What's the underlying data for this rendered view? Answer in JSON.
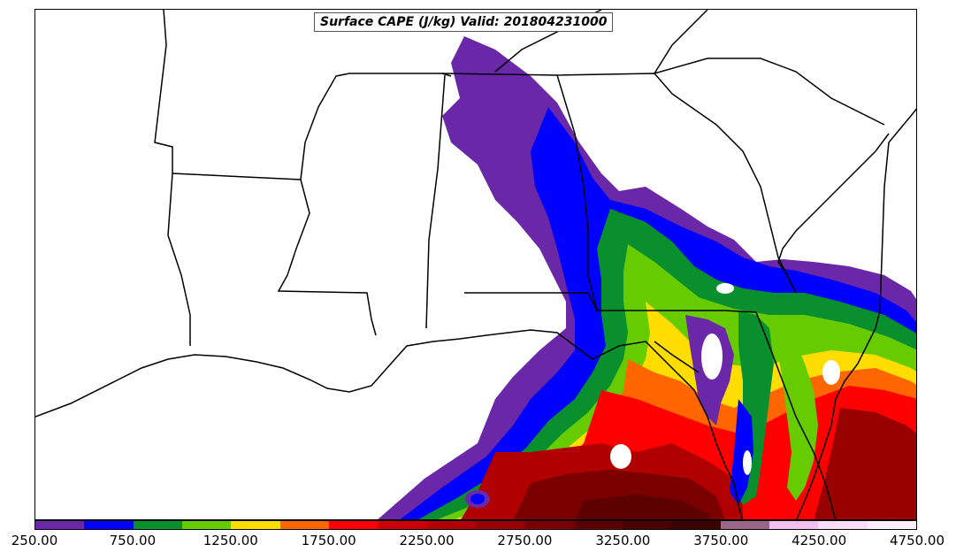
{
  "map": {
    "title": "Surface CAPE (J/kg) Valid: 201804231000"
  },
  "colorbar": {
    "colors": [
      "#6a28a8",
      "#0000ff",
      "#0a8f2e",
      "#66cc00",
      "#ffdd00",
      "#ff6600",
      "#ff0000",
      "#cc0000",
      "#b00000",
      "#990000",
      "#7a0000",
      "#5c0000",
      "#4a0000",
      "#3a0000",
      "#996688",
      "#f2c0f0",
      "#f8dcf8",
      "#fdf0fd"
    ],
    "labels": [
      "250.00",
      "750.00",
      "1250.00",
      "1750.00",
      "2250.00",
      "2750.00",
      "3250.00",
      "3750.00",
      "4250.00",
      "4750.00"
    ]
  }
}
